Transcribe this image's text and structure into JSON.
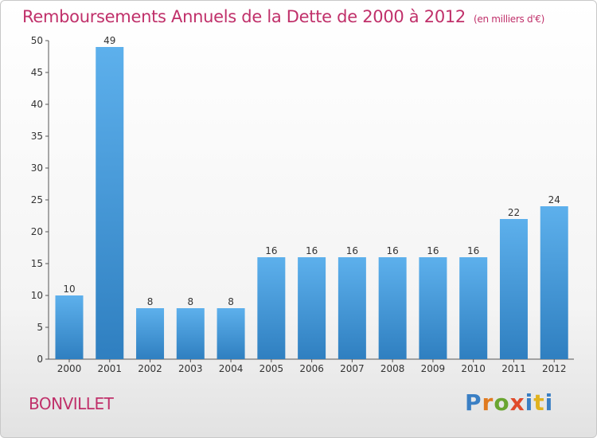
{
  "title": "Remboursements Annuels de la Dette de 2000 à 2012",
  "unit": "(en milliers d'€)",
  "commune": "BONVILLET",
  "brand": {
    "letters": [
      "P",
      "r",
      "o",
      "x",
      "i",
      "t",
      "i"
    ],
    "colors": [
      "#3a7fc4",
      "#e07a1f",
      "#6aa530",
      "#e04a2a",
      "#3a7fc4",
      "#e0b21f",
      "#3a7fc4"
    ]
  },
  "colors": {
    "bar": "#4a9fe0",
    "title": "#c0306a"
  },
  "chart_data": {
    "type": "bar",
    "categories": [
      "2000",
      "2001",
      "2002",
      "2003",
      "2004",
      "2005",
      "2006",
      "2007",
      "2008",
      "2009",
      "2010",
      "2011",
      "2012"
    ],
    "values": [
      10,
      49,
      8,
      8,
      8,
      16,
      16,
      16,
      16,
      16,
      16,
      22,
      24
    ],
    "title": "Remboursements Annuels de la Dette de 2000 à 2012",
    "ylim": [
      0,
      50
    ],
    "yticks": [
      0,
      5,
      10,
      15,
      20,
      25,
      30,
      35,
      40,
      45,
      50
    ],
    "grid": false,
    "data_labels": true
  }
}
